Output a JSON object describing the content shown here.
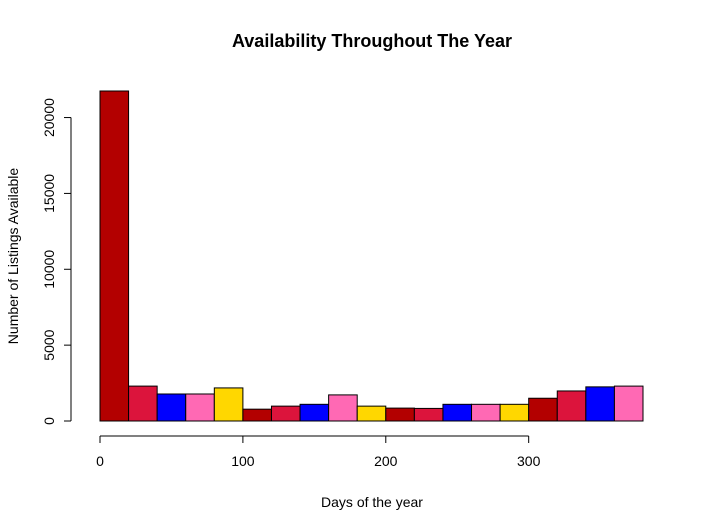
{
  "chart_data": {
    "type": "bar",
    "title": "Availability Throughout The Year",
    "xlabel": "Days of the year",
    "ylabel": "Number of Listings Available",
    "bin_width": 20,
    "bin_starts": [
      0,
      20,
      40,
      60,
      80,
      100,
      120,
      140,
      160,
      180,
      200,
      220,
      240,
      260,
      280,
      300,
      320,
      340,
      360
    ],
    "values": [
      21750,
      2300,
      1780,
      1780,
      2180,
      780,
      980,
      1100,
      1720,
      980,
      850,
      830,
      1100,
      1100,
      1100,
      1500,
      1980,
      2250,
      2300
    ],
    "colors": [
      "#B30000",
      "#DC143C",
      "#0000FF",
      "#FF69B4",
      "#FFD700",
      "#B30000",
      "#DC143C",
      "#0000FF",
      "#FF69B4",
      "#FFD700",
      "#B30000",
      "#DC143C",
      "#0000FF",
      "#FF69B4",
      "#FFD700",
      "#B30000",
      "#DC143C",
      "#0000FF",
      "#FF69B4"
    ],
    "xlim": [
      0,
      380
    ],
    "ylim": [
      0,
      21750
    ],
    "x_ticks": [
      0,
      100,
      200,
      300
    ],
    "y_ticks": [
      0,
      5000,
      10000,
      15000,
      20000
    ],
    "grid": false,
    "legend": "none"
  }
}
